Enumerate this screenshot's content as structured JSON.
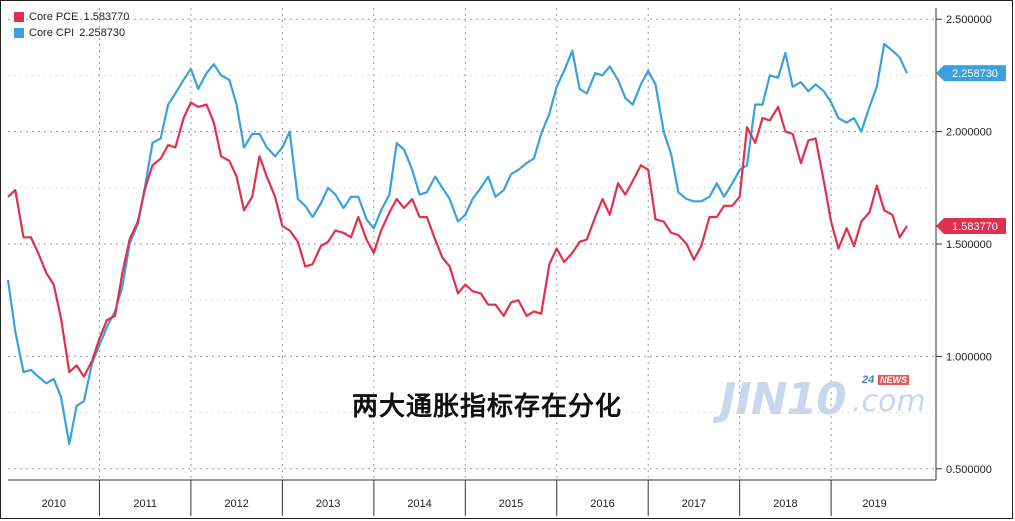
{
  "legend": [
    {
      "name": "Core PCE",
      "value": "1.583770",
      "color": "#e0304e"
    },
    {
      "name": "Core CPI",
      "value": "2.258730",
      "color": "#3aa0e0"
    }
  ],
  "annotation_title": "两大通胀指标存在分化",
  "logo": {
    "main": "JIN10",
    "suffix": ".com",
    "badge_num": "24",
    "badge_text": "NEWS"
  },
  "chart_data": {
    "type": "line",
    "x_tick_labels": [
      "2010",
      "2011",
      "2012",
      "2013",
      "2014",
      "2015",
      "2016",
      "2017",
      "2018",
      "2019"
    ],
    "y_tick_labels": [
      "0.500000",
      "1.000000",
      "1.500000",
      "2.000000",
      "2.500000"
    ],
    "ylim": [
      0.45,
      2.55
    ],
    "xlim": [
      2010.0,
      2019.95
    ],
    "grid": true,
    "legend_position": "top-left",
    "end_value_labels": [
      {
        "series": "Core CPI",
        "text": "2.258730"
      },
      {
        "series": "Core PCE",
        "text": "1.583770"
      }
    ],
    "series": [
      {
        "name": "Core CPI",
        "color": "#3aa0e0",
        "x": [
          2010.0,
          2010.08,
          2010.17,
          2010.25,
          2010.33,
          2010.42,
          2010.5,
          2010.58,
          2010.67,
          2010.75,
          2010.83,
          2010.92,
          2011.0,
          2011.08,
          2011.17,
          2011.25,
          2011.33,
          2011.42,
          2011.5,
          2011.58,
          2011.67,
          2011.75,
          2011.83,
          2011.92,
          2012.0,
          2012.08,
          2012.17,
          2012.25,
          2012.33,
          2012.42,
          2012.5,
          2012.58,
          2012.67,
          2012.75,
          2012.83,
          2012.92,
          2013.0,
          2013.08,
          2013.17,
          2013.25,
          2013.33,
          2013.42,
          2013.5,
          2013.58,
          2013.67,
          2013.75,
          2013.83,
          2013.92,
          2014.0,
          2014.08,
          2014.17,
          2014.25,
          2014.33,
          2014.42,
          2014.5,
          2014.58,
          2014.67,
          2014.75,
          2014.83,
          2014.92,
          2015.0,
          2015.08,
          2015.17,
          2015.25,
          2015.33,
          2015.42,
          2015.5,
          2015.58,
          2015.67,
          2015.75,
          2015.83,
          2015.92,
          2016.0,
          2016.08,
          2016.17,
          2016.25,
          2016.33,
          2016.42,
          2016.5,
          2016.58,
          2016.67,
          2016.75,
          2016.83,
          2016.92,
          2017.0,
          2017.08,
          2017.17,
          2017.25,
          2017.33,
          2017.42,
          2017.5,
          2017.58,
          2017.67,
          2017.75,
          2017.83,
          2017.92,
          2018.0,
          2018.08,
          2018.17,
          2018.25,
          2018.33,
          2018.42,
          2018.5,
          2018.58,
          2018.67,
          2018.75,
          2018.83,
          2018.92,
          2019.0,
          2019.08,
          2019.17,
          2019.25,
          2019.33,
          2019.42,
          2019.5,
          2019.58,
          2019.67,
          2019.75,
          2019.83
        ],
        "values": [
          1.34,
          1.11,
          0.93,
          0.94,
          0.91,
          0.88,
          0.9,
          0.82,
          0.61,
          0.78,
          0.8,
          0.97,
          1.05,
          1.13,
          1.2,
          1.31,
          1.5,
          1.59,
          1.76,
          1.95,
          1.97,
          2.12,
          2.17,
          2.23,
          2.28,
          2.19,
          2.26,
          2.3,
          2.25,
          2.23,
          2.12,
          1.93,
          1.99,
          1.99,
          1.93,
          1.89,
          1.93,
          2.0,
          1.7,
          1.67,
          1.62,
          1.68,
          1.75,
          1.72,
          1.66,
          1.71,
          1.71,
          1.61,
          1.57,
          1.65,
          1.72,
          1.95,
          1.92,
          1.83,
          1.72,
          1.73,
          1.8,
          1.75,
          1.7,
          1.6,
          1.63,
          1.7,
          1.75,
          1.8,
          1.71,
          1.74,
          1.81,
          1.83,
          1.86,
          1.88,
          1.99,
          2.08,
          2.2,
          2.27,
          2.36,
          2.19,
          2.17,
          2.26,
          2.25,
          2.29,
          2.23,
          2.15,
          2.12,
          2.21,
          2.27,
          2.21,
          2.0,
          1.9,
          1.73,
          1.7,
          1.69,
          1.69,
          1.71,
          1.77,
          1.71,
          1.77,
          1.83,
          1.85,
          2.12,
          2.12,
          2.25,
          2.24,
          2.35,
          2.2,
          2.22,
          2.18,
          2.21,
          2.18,
          2.13,
          2.06,
          2.04,
          2.06,
          2.0,
          2.11,
          2.2,
          2.39,
          2.36,
          2.33,
          2.26
        ]
      },
      {
        "name": "Core PCE",
        "color": "#e0304e",
        "x": [
          2010.0,
          2010.08,
          2010.17,
          2010.25,
          2010.33,
          2010.42,
          2010.5,
          2010.58,
          2010.67,
          2010.75,
          2010.83,
          2010.92,
          2011.0,
          2011.08,
          2011.17,
          2011.25,
          2011.33,
          2011.42,
          2011.5,
          2011.58,
          2011.67,
          2011.75,
          2011.83,
          2011.92,
          2012.0,
          2012.08,
          2012.17,
          2012.25,
          2012.33,
          2012.42,
          2012.5,
          2012.58,
          2012.67,
          2012.75,
          2012.83,
          2012.92,
          2013.0,
          2013.08,
          2013.17,
          2013.25,
          2013.33,
          2013.42,
          2013.5,
          2013.58,
          2013.67,
          2013.75,
          2013.83,
          2013.92,
          2014.0,
          2014.08,
          2014.17,
          2014.25,
          2014.33,
          2014.42,
          2014.5,
          2014.58,
          2014.67,
          2014.75,
          2014.83,
          2014.92,
          2015.0,
          2015.08,
          2015.17,
          2015.25,
          2015.33,
          2015.42,
          2015.5,
          2015.58,
          2015.67,
          2015.75,
          2015.83,
          2015.92,
          2016.0,
          2016.08,
          2016.17,
          2016.25,
          2016.33,
          2016.42,
          2016.5,
          2016.58,
          2016.67,
          2016.75,
          2016.83,
          2016.92,
          2017.0,
          2017.08,
          2017.17,
          2017.25,
          2017.33,
          2017.42,
          2017.5,
          2017.58,
          2017.67,
          2017.75,
          2017.83,
          2017.92,
          2018.0,
          2018.08,
          2018.17,
          2018.25,
          2018.33,
          2018.42,
          2018.5,
          2018.58,
          2018.67,
          2018.75,
          2018.83,
          2018.92,
          2019.0,
          2019.08,
          2019.17,
          2019.25,
          2019.33,
          2019.42,
          2019.5,
          2019.58,
          2019.67,
          2019.75,
          2019.83
        ],
        "values": [
          1.71,
          1.74,
          1.53,
          1.53,
          1.46,
          1.37,
          1.32,
          1.17,
          0.93,
          0.96,
          0.91,
          0.98,
          1.08,
          1.16,
          1.18,
          1.37,
          1.52,
          1.6,
          1.75,
          1.85,
          1.88,
          1.94,
          1.93,
          2.06,
          2.13,
          2.11,
          2.12,
          2.04,
          1.89,
          1.87,
          1.8,
          1.65,
          1.71,
          1.89,
          1.8,
          1.71,
          1.58,
          1.56,
          1.51,
          1.4,
          1.41,
          1.49,
          1.51,
          1.56,
          1.55,
          1.53,
          1.62,
          1.52,
          1.46,
          1.56,
          1.64,
          1.7,
          1.66,
          1.7,
          1.62,
          1.62,
          1.52,
          1.44,
          1.4,
          1.28,
          1.32,
          1.29,
          1.28,
          1.23,
          1.23,
          1.18,
          1.24,
          1.25,
          1.18,
          1.2,
          1.19,
          1.41,
          1.48,
          1.42,
          1.46,
          1.51,
          1.52,
          1.62,
          1.7,
          1.63,
          1.77,
          1.72,
          1.78,
          1.85,
          1.83,
          1.61,
          1.6,
          1.55,
          1.54,
          1.5,
          1.43,
          1.49,
          1.62,
          1.62,
          1.67,
          1.67,
          1.71,
          2.02,
          1.95,
          2.06,
          2.05,
          2.11,
          2.0,
          1.99,
          1.86,
          1.96,
          1.97,
          1.78,
          1.6,
          1.48,
          1.57,
          1.49,
          1.6,
          1.64,
          1.76,
          1.65,
          1.63,
          1.53,
          1.58
        ]
      }
    ]
  }
}
